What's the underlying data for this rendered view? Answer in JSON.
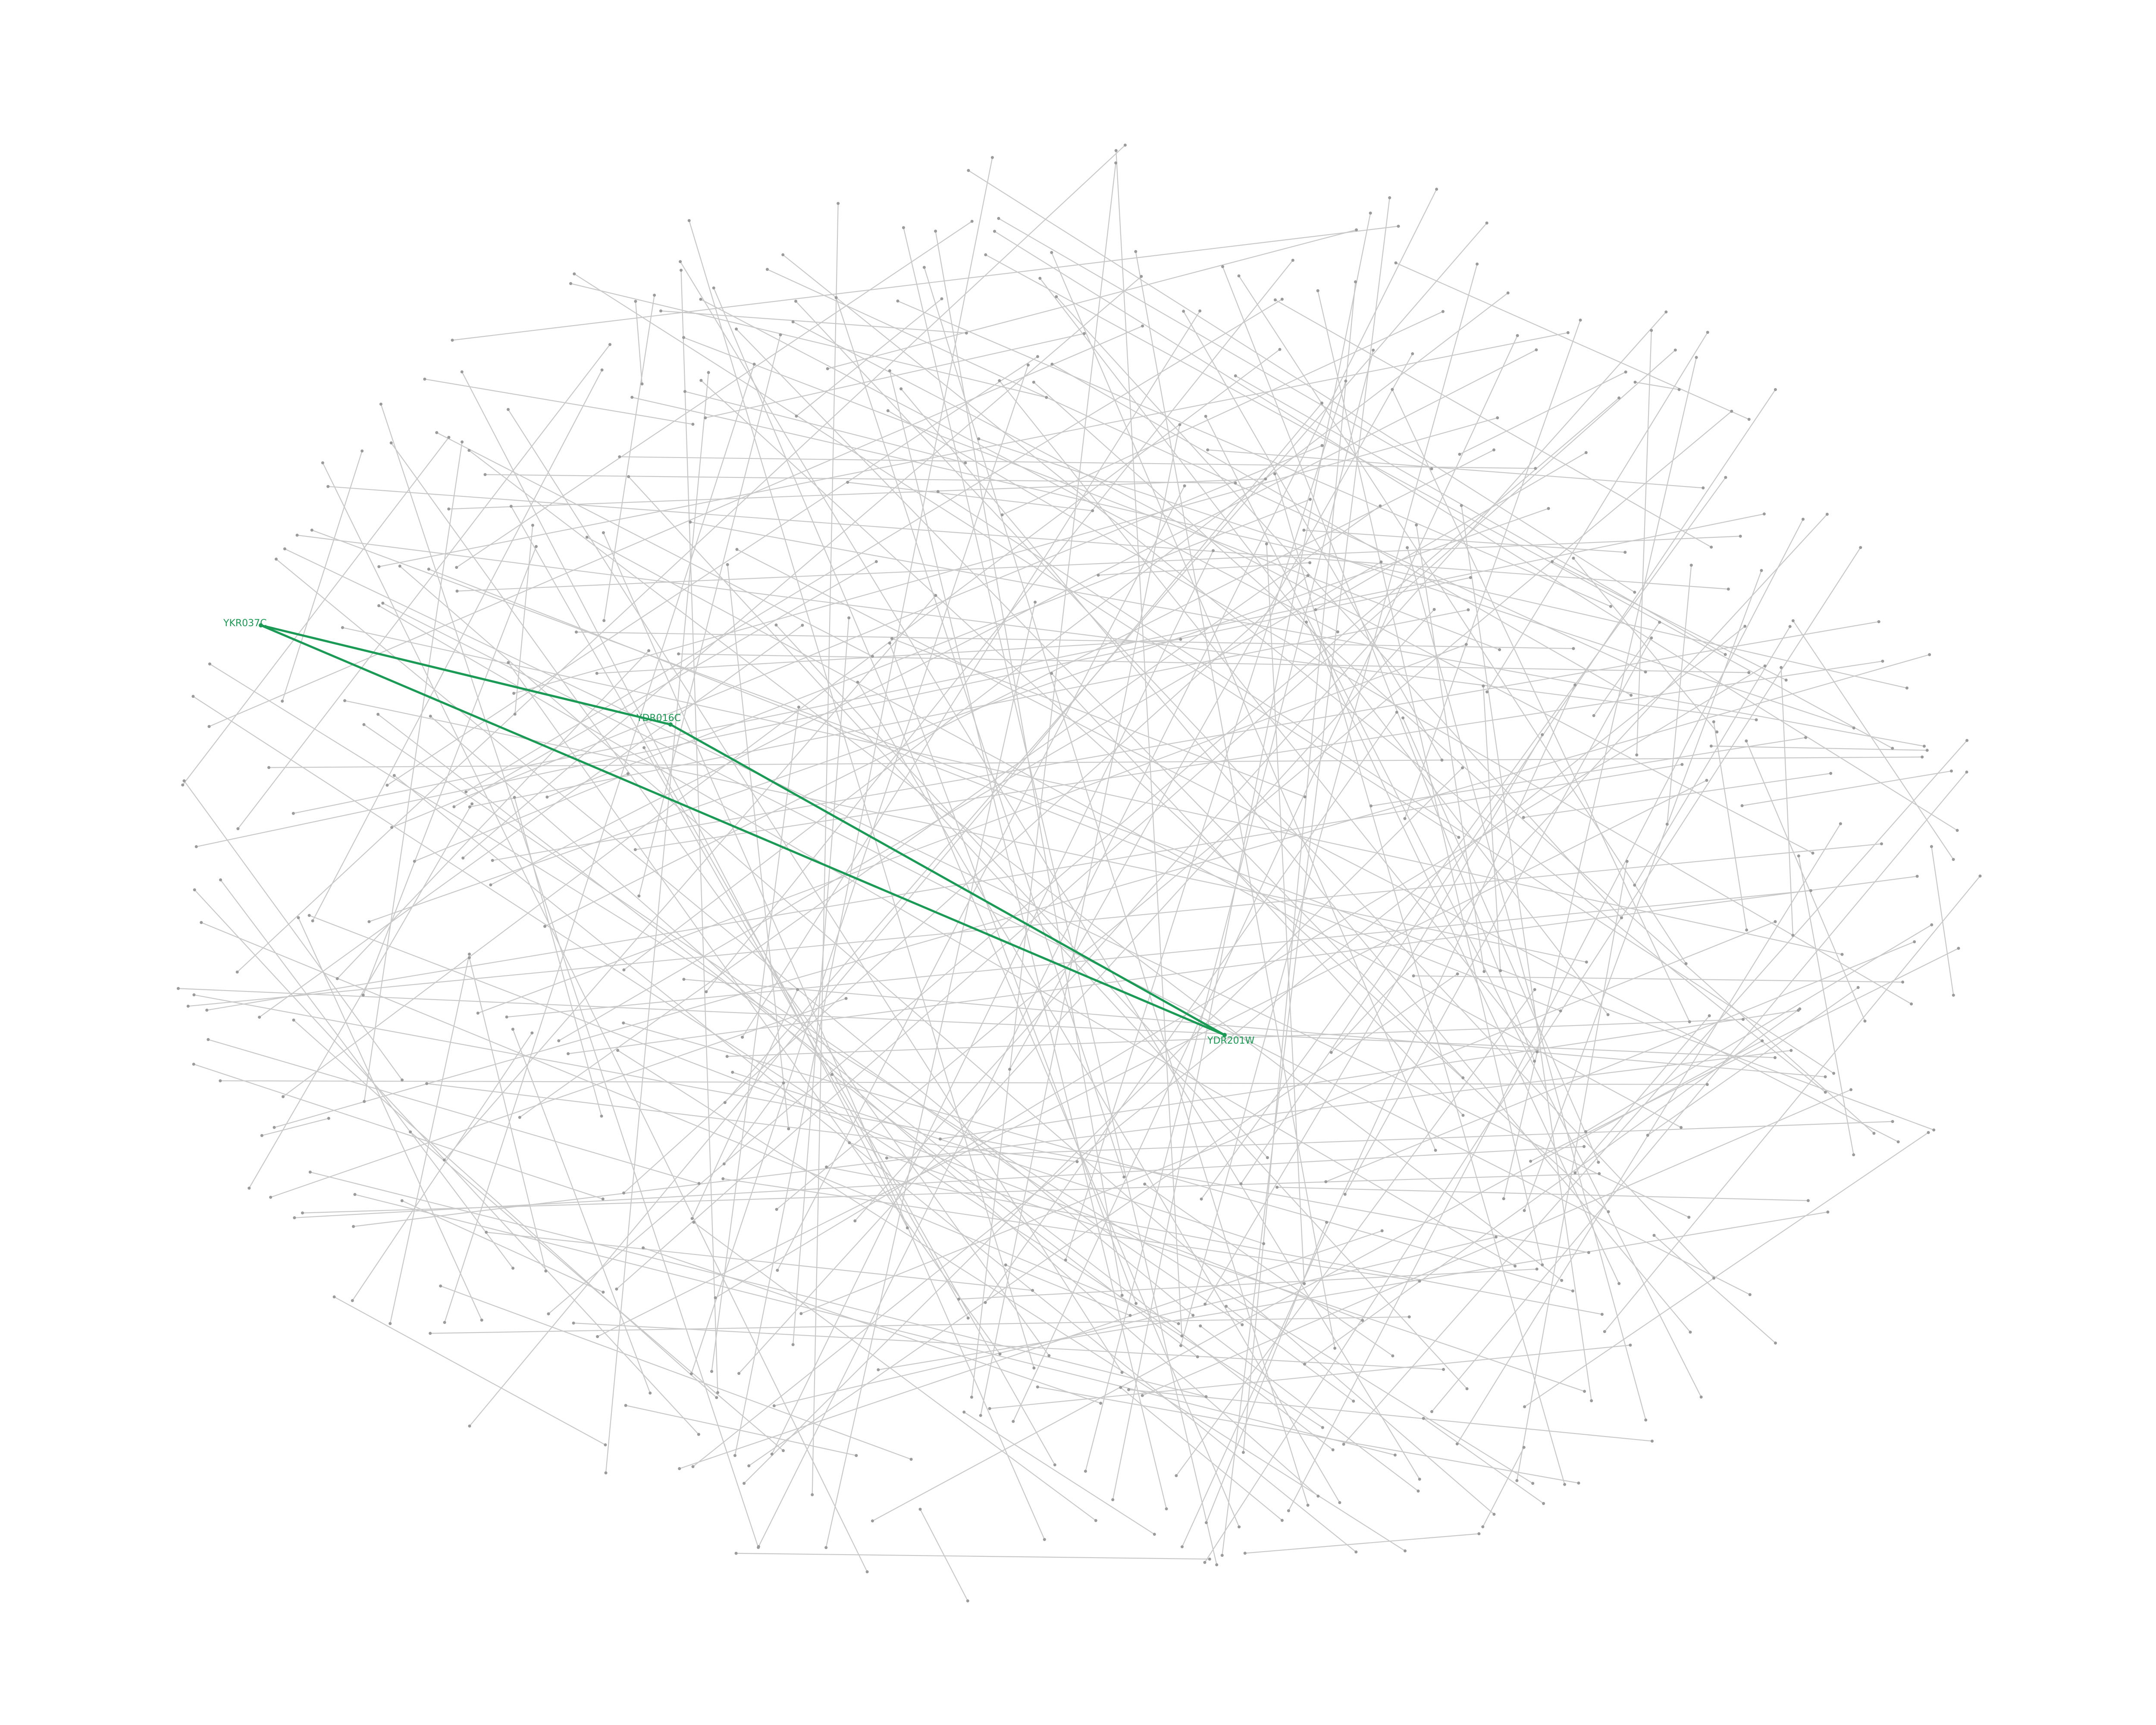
{
  "highlight_color": "#1a9a55",
  "highlighted_nodes": [
    {
      "id": "ykr037c",
      "label": "YKR037C"
    },
    {
      "id": "ydr016c",
      "label": "YDR016C"
    },
    {
      "id": "ydr201w",
      "label": "YDR201W"
    }
  ],
  "highlighted_edges": [
    {
      "source": "ykr037c",
      "target": "ydr016c"
    },
    {
      "source": "ydr016c",
      "target": "ydr201w"
    },
    {
      "source": "ykr037c",
      "target": "ydr201w"
    }
  ]
}
